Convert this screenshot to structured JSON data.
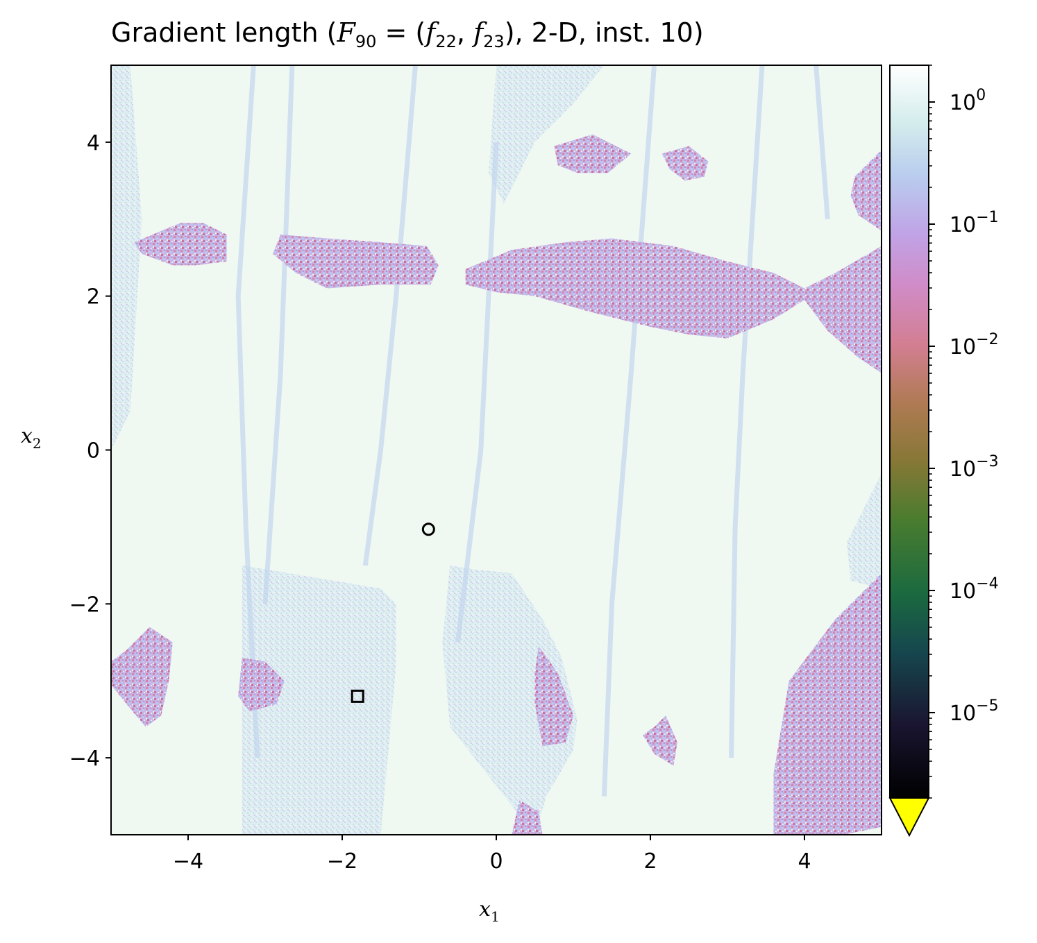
{
  "title": {
    "prefix": "Gradient length (",
    "F": "F",
    "F_sub": "90",
    "eq": " = (",
    "f1": "f",
    "f1_sub": "22",
    "comma": ", ",
    "f2": "f",
    "f2_sub": "23",
    "suffix": "), 2-D, inst. 10)"
  },
  "chart_data": {
    "type": "heatmap",
    "title": "Gradient length (F90 = (f22, f23), 2-D, inst. 10)",
    "xlabel": "x1",
    "ylabel": "x2",
    "xlim": [
      -5,
      5
    ],
    "ylim": [
      -5,
      5
    ],
    "x_ticks": [
      -4,
      -2,
      0,
      2,
      4
    ],
    "y_ticks": [
      -4,
      -2,
      0,
      2,
      4
    ],
    "x_tick_labels": [
      "−4",
      "−2",
      "0",
      "2",
      "4"
    ],
    "y_tick_labels": [
      "−4",
      "−2",
      "0",
      "2",
      "4"
    ],
    "colorbar": {
      "scale": "log",
      "range": [
        2e-06,
        2
      ],
      "ticks": [
        1,
        0.1,
        0.01,
        0.001,
        0.0001,
        1e-05
      ],
      "tick_labels": [
        {
          "base": "10",
          "exp": "0"
        },
        {
          "base": "10",
          "exp": "−1"
        },
        {
          "base": "10",
          "exp": "−2"
        },
        {
          "base": "10",
          "exp": "−3"
        },
        {
          "base": "10",
          "exp": "−4"
        },
        {
          "base": "10",
          "exp": "−5"
        }
      ],
      "extend": "min",
      "under_color": "#ffff00",
      "colormap": "cubehelix"
    },
    "markers": [
      {
        "shape": "circle",
        "x": -0.88,
        "y": -1.03
      },
      {
        "shape": "square",
        "x": -1.8,
        "y": -3.2
      }
    ],
    "background_color": "#f0f8f2",
    "low_gradient_regions": [
      [
        [
          -4.7,
          2.7
        ],
        [
          -4.1,
          2.95
        ],
        [
          -3.8,
          2.95
        ],
        [
          -3.5,
          2.8
        ],
        [
          -3.5,
          2.45
        ],
        [
          -3.9,
          2.4
        ],
        [
          -4.2,
          2.4
        ],
        [
          -4.6,
          2.55
        ]
      ],
      [
        [
          -2.8,
          2.8
        ],
        [
          -2.2,
          2.75
        ],
        [
          -1.5,
          2.7
        ],
        [
          -0.9,
          2.65
        ],
        [
          -0.75,
          2.4
        ],
        [
          -0.85,
          2.15
        ],
        [
          -1.5,
          2.15
        ],
        [
          -2.2,
          2.1
        ],
        [
          -2.6,
          2.3
        ],
        [
          -2.9,
          2.55
        ]
      ],
      [
        [
          -0.4,
          2.35
        ],
        [
          0.2,
          2.6
        ],
        [
          0.9,
          2.7
        ],
        [
          1.5,
          2.75
        ],
        [
          2.3,
          2.65
        ],
        [
          3.0,
          2.45
        ],
        [
          3.6,
          2.3
        ],
        [
          4.0,
          2.1
        ],
        [
          4.4,
          2.3
        ],
        [
          5.0,
          2.65
        ],
        [
          5.0,
          1.0
        ],
        [
          4.7,
          1.2
        ],
        [
          4.3,
          1.55
        ],
        [
          4.0,
          1.95
        ],
        [
          3.6,
          1.7
        ],
        [
          3.0,
          1.45
        ],
        [
          2.5,
          1.5
        ],
        [
          2.0,
          1.6
        ],
        [
          1.2,
          1.8
        ],
        [
          0.5,
          2.0
        ],
        [
          0.0,
          2.05
        ],
        [
          -0.4,
          2.15
        ]
      ],
      [
        [
          0.75,
          3.95
        ],
        [
          1.25,
          4.1
        ],
        [
          1.75,
          3.85
        ],
        [
          1.45,
          3.6
        ],
        [
          1.05,
          3.6
        ],
        [
          0.8,
          3.7
        ]
      ],
      [
        [
          2.15,
          3.85
        ],
        [
          2.5,
          3.95
        ],
        [
          2.75,
          3.75
        ],
        [
          2.7,
          3.55
        ],
        [
          2.45,
          3.5
        ],
        [
          2.25,
          3.65
        ]
      ],
      [
        [
          4.65,
          3.55
        ],
        [
          5.0,
          3.9
        ],
        [
          5.0,
          2.85
        ],
        [
          4.7,
          3.05
        ],
        [
          4.6,
          3.3
        ]
      ],
      [
        [
          -4.5,
          -2.3
        ],
        [
          -4.2,
          -2.5
        ],
        [
          -4.25,
          -3.0
        ],
        [
          -4.35,
          -3.45
        ],
        [
          -4.55,
          -3.6
        ],
        [
          -4.8,
          -3.3
        ],
        [
          -5.0,
          -3.05
        ],
        [
          -5.0,
          -2.75
        ],
        [
          -4.8,
          -2.6
        ]
      ],
      [
        [
          -3.3,
          -2.7
        ],
        [
          -3.0,
          -2.75
        ],
        [
          -2.75,
          -3.0
        ],
        [
          -2.85,
          -3.3
        ],
        [
          -3.2,
          -3.4
        ],
        [
          -3.35,
          -3.2
        ]
      ],
      [
        [
          0.55,
          -2.55
        ],
        [
          0.8,
          -2.9
        ],
        [
          1.0,
          -3.45
        ],
        [
          0.9,
          -3.8
        ],
        [
          0.6,
          -3.85
        ],
        [
          0.5,
          -3.3
        ],
        [
          0.5,
          -2.9
        ]
      ],
      [
        [
          2.2,
          -3.45
        ],
        [
          2.35,
          -3.8
        ],
        [
          2.3,
          -4.1
        ],
        [
          2.05,
          -3.95
        ],
        [
          1.9,
          -3.7
        ],
        [
          2.05,
          -3.6
        ]
      ],
      [
        [
          3.8,
          -3.0
        ],
        [
          4.4,
          -2.2
        ],
        [
          5.0,
          -1.6
        ],
        [
          5.0,
          -4.9
        ],
        [
          4.5,
          -5.0
        ],
        [
          3.6,
          -5.0
        ],
        [
          3.6,
          -4.2
        ],
        [
          3.7,
          -3.6
        ]
      ],
      [
        [
          0.3,
          -4.55
        ],
        [
          0.55,
          -4.7
        ],
        [
          0.6,
          -5.0
        ],
        [
          0.2,
          -5.0
        ]
      ]
    ],
    "mid_gradient_regions": [
      [
        [
          -3.3,
          -1.5
        ],
        [
          -1.5,
          -1.8
        ],
        [
          -1.3,
          -2.0
        ],
        [
          -1.3,
          -2.8
        ],
        [
          -1.5,
          -5.0
        ],
        [
          -3.3,
          -5.0
        ]
      ],
      [
        [
          -0.6,
          -1.5
        ],
        [
          -0.3,
          -1.55
        ],
        [
          0.2,
          -1.6
        ],
        [
          0.6,
          -2.2
        ],
        [
          0.85,
          -2.7
        ],
        [
          1.05,
          -3.5
        ],
        [
          1.0,
          -3.9
        ],
        [
          0.65,
          -4.5
        ],
        [
          0.5,
          -5.0
        ],
        [
          -0.6,
          -3.6
        ],
        [
          -0.7,
          -2.5
        ]
      ],
      [
        [
          -5.0,
          5.0
        ],
        [
          -4.75,
          5.0
        ],
        [
          -4.6,
          3.0
        ],
        [
          -4.75,
          0.5
        ],
        [
          -5.0,
          0.0
        ]
      ],
      [
        [
          0.0,
          5.0
        ],
        [
          1.4,
          5.0
        ],
        [
          1.0,
          4.5
        ],
        [
          0.5,
          4.0
        ],
        [
          0.1,
          3.2
        ],
        [
          -0.1,
          3.6
        ]
      ],
      [
        [
          4.55,
          -1.2
        ],
        [
          5.0,
          -0.3
        ],
        [
          5.0,
          -1.8
        ],
        [
          4.6,
          -1.7
        ]
      ]
    ],
    "ridge_lines": [
      [
        [
          -3.15,
          5.0
        ],
        [
          -3.35,
          2.0
        ],
        [
          -3.25,
          -1.0
        ],
        [
          -3.1,
          -4.0
        ]
      ],
      [
        [
          -2.65,
          5.0
        ],
        [
          -2.8,
          1.0
        ],
        [
          -3.0,
          -2.0
        ]
      ],
      [
        [
          -1.05,
          5.0
        ],
        [
          -1.3,
          2.0
        ],
        [
          -1.5,
          0.0
        ],
        [
          -1.7,
          -1.5
        ]
      ],
      [
        [
          0.0,
          4.0
        ],
        [
          -0.2,
          0.0
        ],
        [
          -0.5,
          -2.5
        ]
      ],
      [
        [
          2.05,
          5.0
        ],
        [
          1.75,
          1.0
        ],
        [
          1.5,
          -2.0
        ],
        [
          1.4,
          -4.5
        ]
      ],
      [
        [
          3.45,
          5.0
        ],
        [
          3.2,
          1.0
        ],
        [
          3.1,
          -1.0
        ],
        [
          3.05,
          -4.0
        ]
      ],
      [
        [
          4.15,
          5.0
        ],
        [
          4.3,
          3.0
        ]
      ]
    ]
  }
}
